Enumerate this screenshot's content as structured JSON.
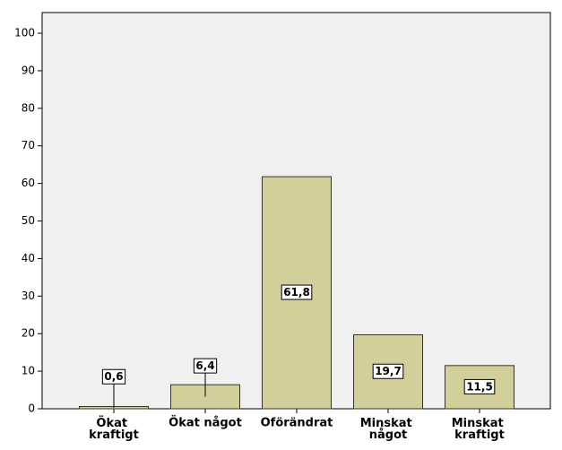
{
  "chart_data": {
    "type": "bar",
    "categories": [
      "Ökat kraftigt",
      "Ökat något",
      "Oförändrat",
      "Minskat något",
      "Minskat kraftigt"
    ],
    "values": [
      0.6,
      6.4,
      61.8,
      19.7,
      11.5
    ],
    "value_labels": [
      "0,6",
      "6,4",
      "61,8",
      "19,7",
      "11,5"
    ],
    "color": "#d3cf9b",
    "ylim": [
      0,
      105.5
    ],
    "yticks": [
      0,
      10,
      20,
      30,
      40,
      50,
      60,
      70,
      80,
      90,
      100
    ],
    "grid": false
  }
}
